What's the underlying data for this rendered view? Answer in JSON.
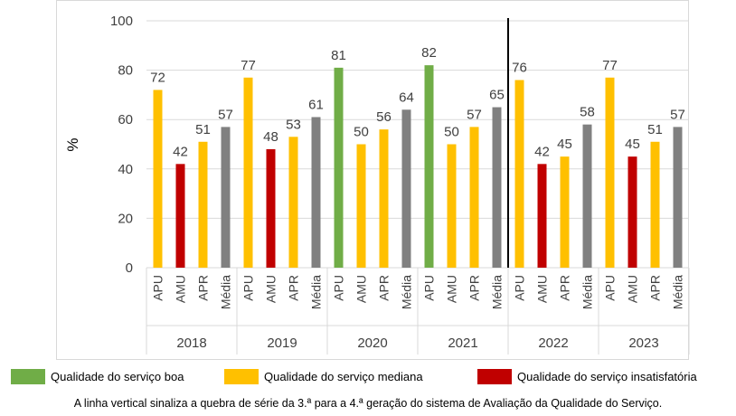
{
  "colors": {
    "boa": "#70ad47",
    "mediana": "#ffc000",
    "insatisfatoria": "#c00000",
    "media": "#808080",
    "grid": "#d9d9d9",
    "text": "#404040"
  },
  "legend": [
    {
      "label": "Qualidade do serviço boa",
      "color": "#70ad47"
    },
    {
      "label": "Qualidade do serviço mediana",
      "color": "#ffc000"
    },
    {
      "label": "Qualidade do serviço insatisfatória",
      "color": "#c00000"
    }
  ],
  "note": "A linha vertical sinaliza a quebra de série da 3.ª para a 4.ª geração do sistema de Avaliação da Qualidade do Serviço.",
  "chart_data": {
    "type": "bar",
    "ylabel": "%",
    "ylim": [
      0,
      100
    ],
    "yticks": [
      0,
      20,
      40,
      60,
      80,
      100
    ],
    "grid": true,
    "series_break_after_group": "2021",
    "groups": [
      {
        "year": "2018",
        "bars": [
          {
            "category": "APU",
            "value": 72,
            "quality": "mediana"
          },
          {
            "category": "AMU",
            "value": 42,
            "quality": "insatisfatoria"
          },
          {
            "category": "APR",
            "value": 51,
            "quality": "mediana"
          },
          {
            "category": "Média",
            "value": 57,
            "quality": "media"
          }
        ]
      },
      {
        "year": "2019",
        "bars": [
          {
            "category": "APU",
            "value": 77,
            "quality": "mediana"
          },
          {
            "category": "AMU",
            "value": 48,
            "quality": "insatisfatoria"
          },
          {
            "category": "APR",
            "value": 53,
            "quality": "mediana"
          },
          {
            "category": "Média",
            "value": 61,
            "quality": "media"
          }
        ]
      },
      {
        "year": "2020",
        "bars": [
          {
            "category": "APU",
            "value": 81,
            "quality": "boa"
          },
          {
            "category": "AMU",
            "value": 50,
            "quality": "mediana"
          },
          {
            "category": "APR",
            "value": 56,
            "quality": "mediana"
          },
          {
            "category": "Média",
            "value": 64,
            "quality": "media"
          }
        ]
      },
      {
        "year": "2021",
        "bars": [
          {
            "category": "APU",
            "value": 82,
            "quality": "boa"
          },
          {
            "category": "AMU",
            "value": 50,
            "quality": "mediana"
          },
          {
            "category": "APR",
            "value": 57,
            "quality": "mediana"
          },
          {
            "category": "Média",
            "value": 65,
            "quality": "media"
          }
        ]
      },
      {
        "year": "2022",
        "bars": [
          {
            "category": "APU",
            "value": 76,
            "quality": "mediana"
          },
          {
            "category": "AMU",
            "value": 42,
            "quality": "insatisfatoria"
          },
          {
            "category": "APR",
            "value": 45,
            "quality": "mediana"
          },
          {
            "category": "Média",
            "value": 58,
            "quality": "media"
          }
        ]
      },
      {
        "year": "2023",
        "bars": [
          {
            "category": "APU",
            "value": 77,
            "quality": "mediana"
          },
          {
            "category": "AMU",
            "value": 45,
            "quality": "insatisfatoria"
          },
          {
            "category": "APR",
            "value": 51,
            "quality": "mediana"
          },
          {
            "category": "Média",
            "value": 57,
            "quality": "media"
          }
        ]
      }
    ]
  }
}
